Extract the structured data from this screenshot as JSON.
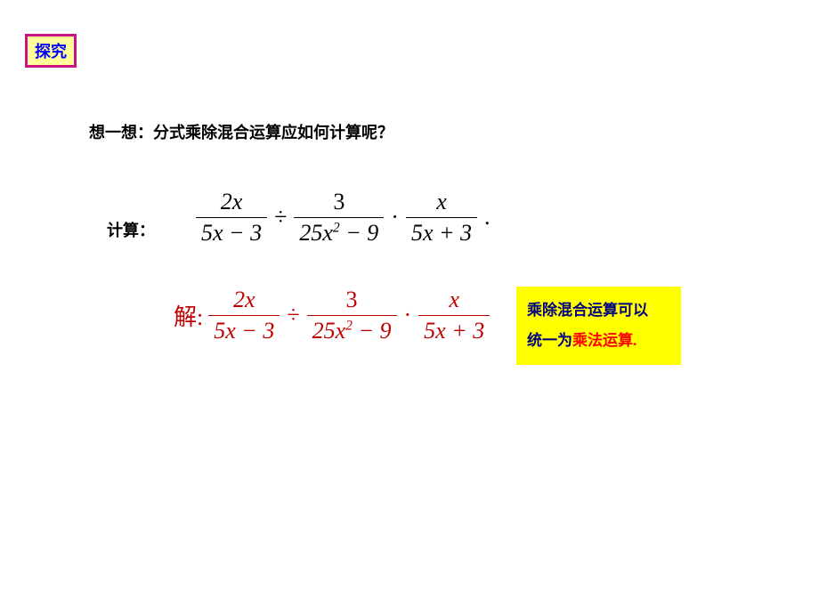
{
  "badge": {
    "text": "探究",
    "border_color": "#c71585",
    "background_color": "#ffff99",
    "text_color": "#0000ff"
  },
  "prompt": {
    "text": "想一想：分式乘除混合运算应如何计算呢？",
    "color": "#000000"
  },
  "calc_label": {
    "text": "计算：",
    "color": "#000000"
  },
  "equation1": {
    "color": "#000000",
    "f1_num": "2x",
    "f1_den": "5x − 3",
    "op1": "÷",
    "f2_num": "3",
    "f2_den_a": "25x",
    "f2_den_exp": "2",
    "f2_den_b": " − 9",
    "op2": "·",
    "f3_num": "x",
    "f3_den": "5x + 3",
    "tail": "."
  },
  "equation2": {
    "label": "解:",
    "color": "#c00000",
    "f1_num": "2x",
    "f1_den": "5x − 3",
    "op1": "÷",
    "f2_num": "3",
    "f2_den_a": "25x",
    "f2_den_exp": "2",
    "f2_den_b": " − 9",
    "op2": "·",
    "f3_num": "x",
    "f3_den": "5x + 3"
  },
  "note": {
    "background_color": "#ffff00",
    "line1_a": "乘除混合运算可以",
    "line1_color": "#000080",
    "line2_a": "统一为",
    "line2_b": "乘法运算.",
    "line2_b_color": "#ff0000"
  }
}
